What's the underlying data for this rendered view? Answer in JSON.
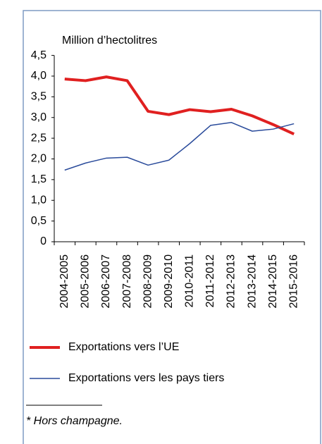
{
  "chart_data": {
    "type": "line",
    "y_label": "Million d’hectolitres",
    "categories": [
      "2004-2005",
      "2005-2006",
      "2006-2007",
      "2007-2008",
      "2008-2009",
      "2009-2010",
      "2010-2011",
      "2011-2012",
      "2012-2013",
      "2013-2014",
      "2014-2015",
      "2015-2016"
    ],
    "series": [
      {
        "name": "Exportations vers l’UE",
        "color": "#e02020",
        "values": [
          3.93,
          3.89,
          3.98,
          3.89,
          3.15,
          3.07,
          3.19,
          3.14,
          3.2,
          3.04,
          2.83,
          2.6
        ]
      },
      {
        "name": "Exportations vers les pays tiers",
        "color": "#2a4b9b",
        "values": [
          1.73,
          1.9,
          2.02,
          2.04,
          1.85,
          1.97,
          2.37,
          2.81,
          2.88,
          2.67,
          2.72,
          2.85
        ]
      }
    ],
    "ylim": [
      0,
      4.5
    ],
    "yticks": [
      0,
      {
        "value": 0.5,
        "label": "0,5"
      },
      {
        "value": 1,
        "label": "1,0"
      },
      {
        "value": 1.5,
        "label": "1,5"
      },
      {
        "value": 2,
        "label": "2,0"
      },
      {
        "value": 2.5,
        "label": "2,5"
      },
      {
        "value": 3,
        "label": "3,0"
      },
      {
        "value": 3.5,
        "label": "3,5"
      },
      {
        "value": 4,
        "label": "4,0"
      },
      {
        "value": 4.5,
        "label": "4,5"
      }
    ],
    "footnote": "* Hors champagne."
  }
}
